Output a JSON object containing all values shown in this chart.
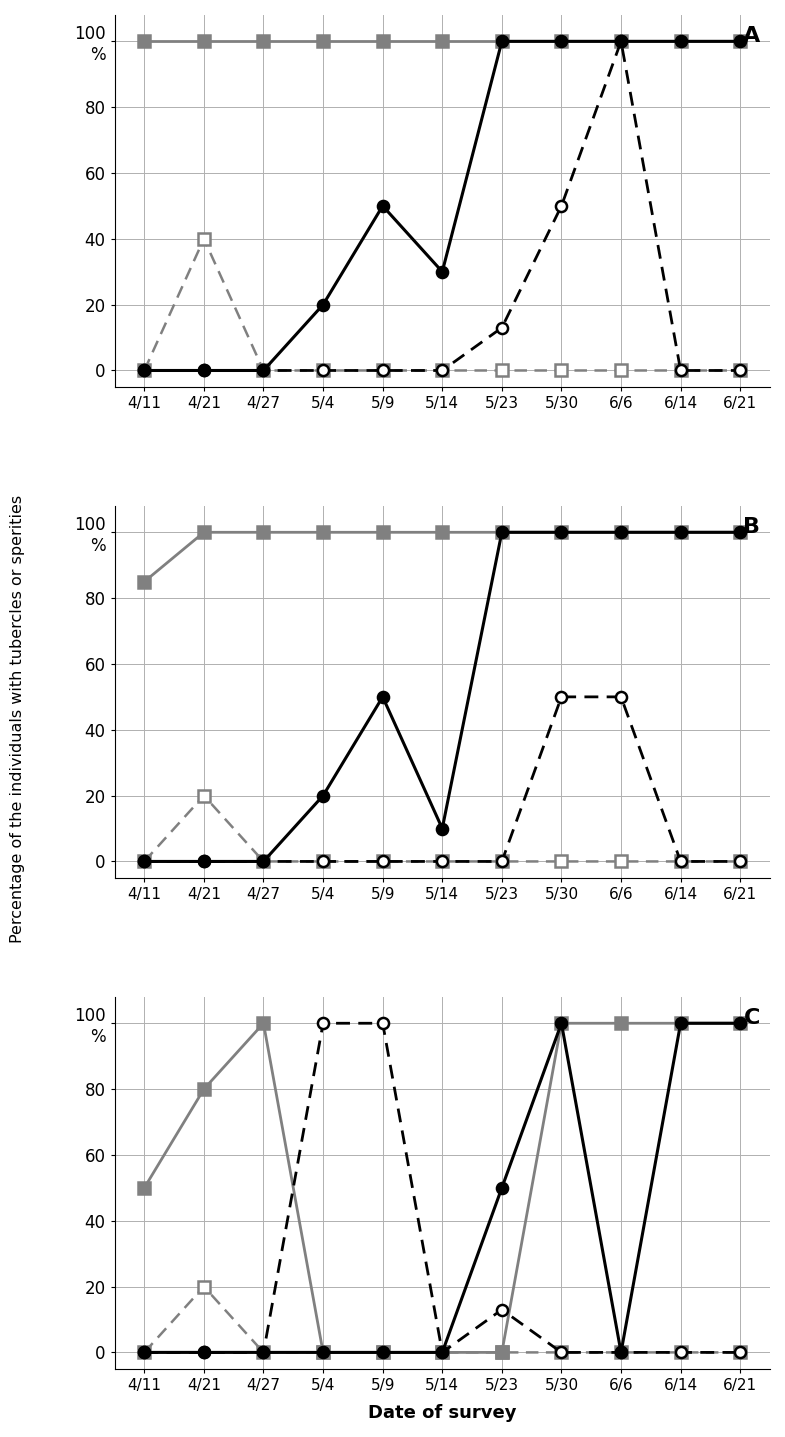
{
  "x_labels": [
    "4/11",
    "4/21",
    "4/27",
    "5/4",
    "5/9",
    "5/14",
    "5/23",
    "5/30",
    "6/6",
    "6/14",
    "6/21"
  ],
  "panels": [
    {
      "label": "A",
      "series": [
        {
          "y": [
            100,
            100,
            100,
            100,
            100,
            100,
            100,
            100,
            100,
            100,
            100
          ],
          "color": "#808080",
          "linestyle": "solid",
          "marker": "s",
          "fillstyle": "full",
          "linewidth": 2.0,
          "markersize": 8,
          "zorder": 3
        },
        {
          "y": [
            0,
            0,
            0,
            20,
            50,
            30,
            100,
            100,
            100,
            100,
            100
          ],
          "color": "#000000",
          "linestyle": "solid",
          "marker": "o",
          "fillstyle": "full",
          "linewidth": 2.2,
          "markersize": 8,
          "zorder": 4
        },
        {
          "y": [
            0,
            40,
            0,
            0,
            0,
            0,
            0,
            0,
            0,
            0,
            0
          ],
          "color": "#808080",
          "linestyle": "dashed",
          "marker": "s",
          "fillstyle": "none",
          "linewidth": 1.8,
          "markersize": 8,
          "zorder": 2
        },
        {
          "y": [
            0,
            0,
            0,
            0,
            0,
            0,
            13,
            50,
            100,
            0,
            0
          ],
          "color": "#000000",
          "linestyle": "dashed",
          "marker": "o",
          "fillstyle": "none",
          "linewidth": 2.0,
          "markersize": 8,
          "zorder": 3
        }
      ]
    },
    {
      "label": "B",
      "series": [
        {
          "y": [
            85,
            100,
            100,
            100,
            100,
            100,
            100,
            100,
            100,
            100,
            100
          ],
          "color": "#808080",
          "linestyle": "solid",
          "marker": "s",
          "fillstyle": "full",
          "linewidth": 2.0,
          "markersize": 8,
          "zorder": 3
        },
        {
          "y": [
            0,
            0,
            0,
            20,
            50,
            10,
            100,
            100,
            100,
            100,
            100
          ],
          "color": "#000000",
          "linestyle": "solid",
          "marker": "o",
          "fillstyle": "full",
          "linewidth": 2.2,
          "markersize": 8,
          "zorder": 4
        },
        {
          "y": [
            0,
            20,
            0,
            0,
            0,
            0,
            0,
            0,
            0,
            0,
            0
          ],
          "color": "#808080",
          "linestyle": "dashed",
          "marker": "s",
          "fillstyle": "none",
          "linewidth": 1.8,
          "markersize": 8,
          "zorder": 2
        },
        {
          "y": [
            0,
            0,
            0,
            0,
            0,
            0,
            0,
            50,
            50,
            0,
            0
          ],
          "color": "#000000",
          "linestyle": "dashed",
          "marker": "o",
          "fillstyle": "none",
          "linewidth": 2.0,
          "markersize": 8,
          "zorder": 3
        }
      ]
    },
    {
      "label": "C",
      "series": [
        {
          "y": [
            50,
            80,
            100,
            0,
            0,
            0,
            0,
            100,
            100,
            100,
            100
          ],
          "color": "#808080",
          "linestyle": "solid",
          "marker": "s",
          "fillstyle": "full",
          "linewidth": 2.0,
          "markersize": 8,
          "zorder": 3
        },
        {
          "y": [
            0,
            0,
            0,
            0,
            0,
            0,
            50,
            100,
            0,
            100,
            100
          ],
          "color": "#000000",
          "linestyle": "solid",
          "marker": "o",
          "fillstyle": "full",
          "linewidth": 2.2,
          "markersize": 8,
          "zorder": 4
        },
        {
          "y": [
            0,
            20,
            0,
            0,
            0,
            0,
            0,
            0,
            0,
            0,
            0
          ],
          "color": "#808080",
          "linestyle": "dashed",
          "marker": "s",
          "fillstyle": "none",
          "linewidth": 1.8,
          "markersize": 8,
          "zorder": 2
        },
        {
          "y": [
            0,
            0,
            0,
            100,
            100,
            0,
            13,
            0,
            0,
            0,
            0
          ],
          "color": "#000000",
          "linestyle": "dashed",
          "marker": "o",
          "fillstyle": "none",
          "linewidth": 2.0,
          "markersize": 8,
          "zorder": 3
        }
      ]
    }
  ],
  "ylabel": "Percentage of the individuals with tubercles or sperities",
  "xlabel": "Date of survey",
  "yticks": [
    0,
    20,
    40,
    60,
    80,
    100
  ],
  "ytick_labels": [
    "0",
    "20",
    "40",
    "60",
    "80",
    "100\n%"
  ],
  "background_color": "#ffffff",
  "grid_color": "#b0b0b0"
}
